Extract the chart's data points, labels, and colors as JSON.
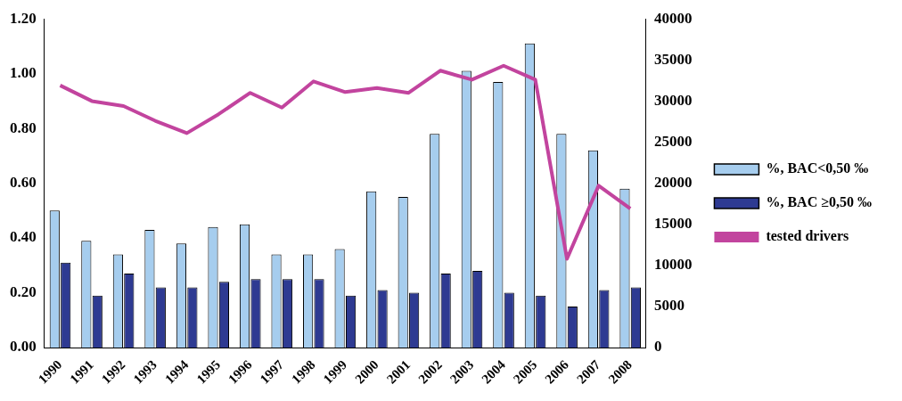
{
  "chart_data": {
    "type": "bar",
    "categories": [
      "1990",
      "1991",
      "1992",
      "1993",
      "1994",
      "1995",
      "1996",
      "1997",
      "1998",
      "1999",
      "2000",
      "2001",
      "2002",
      "2003",
      "2004",
      "2005",
      "2006",
      "2007",
      "2008"
    ],
    "series": [
      {
        "name": "%, BAC<0,50 ‰",
        "color": "#a6cdee",
        "values": [
          0.5,
          0.39,
          0.34,
          0.43,
          0.38,
          0.44,
          0.45,
          0.34,
          0.34,
          0.36,
          0.57,
          0.55,
          0.78,
          1.01,
          0.97,
          1.11,
          0.78,
          0.72,
          0.58
        ]
      },
      {
        "name": "%, BAC ≥0,50 ‰",
        "color": "#2e3a92",
        "values": [
          0.31,
          0.19,
          0.27,
          0.22,
          0.22,
          0.24,
          0.25,
          0.25,
          0.25,
          0.19,
          0.21,
          0.2,
          0.27,
          0.28,
          0.2,
          0.19,
          0.15,
          0.21,
          0.22
        ]
      },
      {
        "name": "tested drivers",
        "type": "line",
        "axis": "y2",
        "color": "#c2449e",
        "values": [
          31900,
          30000,
          29400,
          27600,
          26100,
          28400,
          31000,
          29200,
          32400,
          31100,
          31600,
          31000,
          33700,
          32600,
          34300,
          32600,
          10800,
          19700,
          16900
        ]
      }
    ],
    "ylim": [
      0,
      1.2
    ],
    "yticks": [
      {
        "value": 0,
        "label": "0.00"
      },
      {
        "value": 0.2,
        "label": "0.20"
      },
      {
        "value": 0.4,
        "label": "0.40"
      },
      {
        "value": 0.6,
        "label": "0.60"
      },
      {
        "value": 0.8,
        "label": "0.80"
      },
      {
        "value": 1,
        "label": "1.00"
      },
      {
        "value": 1.2,
        "label": "1.20"
      }
    ],
    "y2lim": [
      0,
      40000
    ],
    "y2ticks": [
      0,
      5000,
      10000,
      15000,
      20000,
      25000,
      30000,
      35000,
      40000
    ],
    "grid": false,
    "legend": "right",
    "marker": "none",
    "line_style": "solid"
  }
}
